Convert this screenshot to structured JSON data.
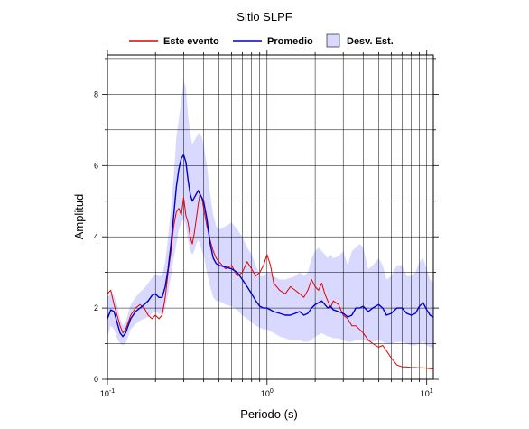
{
  "chart_data": {
    "type": "line",
    "title": "Sitio SLPF",
    "xlabel": "Periodo (s)",
    "ylabel": "Amplitud",
    "x_scale": "log",
    "xlim": [
      0.1,
      11
    ],
    "ylim": [
      0,
      9.1
    ],
    "grid": true,
    "legend_placement": "top-center",
    "x_ticks": [
      {
        "value": 0.1,
        "base": "10",
        "exp": "-1"
      },
      {
        "value": 1,
        "base": "10",
        "exp": "0"
      },
      {
        "value": 10,
        "base": "10",
        "exp": "1"
      }
    ],
    "y_ticks": [
      0,
      2,
      4,
      6,
      8
    ],
    "legend": {
      "event_label": "Este evento",
      "mean_label": "Promedio",
      "std_label": "Desv. Est."
    },
    "colors": {
      "event": "#e60000",
      "mean": "#0000cc",
      "band": "#d9d9ff",
      "grid": "#000000"
    },
    "series": [
      {
        "name": "Este evento",
        "x": [
          0.1,
          0.105,
          0.11,
          0.115,
          0.12,
          0.125,
          0.13,
          0.135,
          0.14,
          0.15,
          0.16,
          0.17,
          0.18,
          0.19,
          0.2,
          0.21,
          0.22,
          0.23,
          0.24,
          0.25,
          0.26,
          0.27,
          0.28,
          0.29,
          0.3,
          0.31,
          0.32,
          0.33,
          0.34,
          0.35,
          0.36,
          0.37,
          0.38,
          0.39,
          0.4,
          0.42,
          0.44,
          0.46,
          0.48,
          0.5,
          0.55,
          0.6,
          0.65,
          0.7,
          0.75,
          0.8,
          0.85,
          0.9,
          0.95,
          1.0,
          1.05,
          1.1,
          1.2,
          1.3,
          1.4,
          1.5,
          1.6,
          1.7,
          1.8,
          1.9,
          2.0,
          2.1,
          2.2,
          2.3,
          2.4,
          2.5,
          2.6,
          2.8,
          3.0,
          3.2,
          3.4,
          3.6,
          3.8,
          4.0,
          4.3,
          4.6,
          5.0,
          5.3,
          5.6,
          6.0,
          6.5,
          7.0,
          7.5,
          8.0,
          8.5,
          9.0,
          9.5,
          10.0,
          10.5,
          11.0
        ],
        "y": [
          2.4,
          2.5,
          2.1,
          1.8,
          1.5,
          1.3,
          1.4,
          1.6,
          1.8,
          2.0,
          2.1,
          2.0,
          1.8,
          1.7,
          1.8,
          1.7,
          1.8,
          2.3,
          3.0,
          3.6,
          4.3,
          4.7,
          4.8,
          4.6,
          5.1,
          4.6,
          4.4,
          4.0,
          3.8,
          4.1,
          4.5,
          4.9,
          5.2,
          5.1,
          4.8,
          4.3,
          3.9,
          3.6,
          3.4,
          3.3,
          3.1,
          3.2,
          2.9,
          3.0,
          3.3,
          3.1,
          2.9,
          3.0,
          3.2,
          3.5,
          3.2,
          2.7,
          2.5,
          2.4,
          2.6,
          2.5,
          2.4,
          2.3,
          2.5,
          2.8,
          2.6,
          2.5,
          2.7,
          2.4,
          2.2,
          2.0,
          2.2,
          2.1,
          1.8,
          1.7,
          1.5,
          1.5,
          1.4,
          1.3,
          1.1,
          1.0,
          0.9,
          0.95,
          0.8,
          0.6,
          0.4,
          0.35,
          0.35,
          0.33,
          0.33,
          0.32,
          0.32,
          0.31,
          0.3,
          0.3
        ]
      },
      {
        "name": "Promedio",
        "x": [
          0.1,
          0.105,
          0.11,
          0.115,
          0.12,
          0.125,
          0.13,
          0.135,
          0.14,
          0.15,
          0.16,
          0.17,
          0.18,
          0.19,
          0.2,
          0.21,
          0.22,
          0.23,
          0.24,
          0.25,
          0.26,
          0.27,
          0.28,
          0.29,
          0.3,
          0.31,
          0.32,
          0.33,
          0.34,
          0.35,
          0.36,
          0.37,
          0.38,
          0.39,
          0.4,
          0.42,
          0.44,
          0.46,
          0.48,
          0.5,
          0.55,
          0.6,
          0.65,
          0.7,
          0.75,
          0.8,
          0.85,
          0.9,
          0.95,
          1.0,
          1.05,
          1.1,
          1.2,
          1.3,
          1.4,
          1.5,
          1.6,
          1.7,
          1.8,
          1.9,
          2.0,
          2.1,
          2.2,
          2.3,
          2.4,
          2.5,
          2.6,
          2.8,
          3.0,
          3.2,
          3.4,
          3.6,
          3.8,
          4.0,
          4.3,
          4.6,
          5.0,
          5.3,
          5.6,
          6.0,
          6.5,
          7.0,
          7.5,
          8.0,
          8.5,
          9.0,
          9.5,
          10.0,
          10.5,
          11.0
        ],
        "y": [
          1.7,
          1.95,
          1.9,
          1.6,
          1.3,
          1.2,
          1.3,
          1.5,
          1.7,
          1.9,
          2.0,
          2.1,
          2.2,
          2.35,
          2.4,
          2.3,
          2.3,
          2.6,
          3.1,
          3.8,
          4.6,
          5.4,
          5.9,
          6.2,
          6.3,
          6.1,
          5.6,
          5.2,
          5.0,
          5.1,
          5.2,
          5.3,
          5.2,
          5.1,
          5.0,
          4.5,
          3.8,
          3.4,
          3.25,
          3.2,
          3.15,
          3.1,
          3.0,
          2.8,
          2.6,
          2.4,
          2.2,
          2.05,
          2.0,
          2.0,
          1.95,
          1.9,
          1.85,
          1.8,
          1.8,
          1.85,
          1.9,
          1.8,
          1.85,
          2.0,
          2.1,
          2.15,
          2.2,
          2.1,
          2.0,
          2.05,
          1.95,
          1.9,
          1.85,
          1.75,
          1.8,
          2.0,
          2.0,
          2.05,
          1.9,
          2.0,
          2.1,
          2.0,
          1.8,
          1.85,
          2.0,
          2.0,
          1.85,
          1.8,
          1.85,
          2.05,
          2.15,
          1.95,
          1.8,
          1.75
        ]
      }
    ],
    "band": {
      "name": "Desv. Est.",
      "x": [
        0.1,
        0.105,
        0.11,
        0.115,
        0.12,
        0.125,
        0.13,
        0.135,
        0.14,
        0.15,
        0.16,
        0.17,
        0.18,
        0.19,
        0.2,
        0.21,
        0.22,
        0.23,
        0.24,
        0.25,
        0.26,
        0.27,
        0.28,
        0.29,
        0.3,
        0.31,
        0.32,
        0.33,
        0.34,
        0.35,
        0.36,
        0.37,
        0.38,
        0.39,
        0.4,
        0.42,
        0.44,
        0.46,
        0.48,
        0.5,
        0.55,
        0.6,
        0.65,
        0.7,
        0.75,
        0.8,
        0.85,
        0.9,
        0.95,
        1.0,
        1.05,
        1.1,
        1.2,
        1.3,
        1.4,
        1.5,
        1.6,
        1.7,
        1.8,
        1.9,
        2.0,
        2.1,
        2.2,
        2.3,
        2.4,
        2.5,
        2.6,
        2.8,
        3.0,
        3.2,
        3.4,
        3.6,
        3.8,
        4.0,
        4.3,
        4.6,
        5.0,
        5.3,
        5.6,
        6.0,
        6.5,
        7.0,
        7.5,
        8.0,
        8.5,
        9.0,
        9.5,
        10.0,
        10.5,
        11.0
      ],
      "lower": [
        1.2,
        1.5,
        1.4,
        1.15,
        1.0,
        0.95,
        1.0,
        1.2,
        1.4,
        1.55,
        1.65,
        1.7,
        1.75,
        1.85,
        1.9,
        1.85,
        1.8,
        2.0,
        2.4,
        2.9,
        3.4,
        3.8,
        4.2,
        4.4,
        4.5,
        4.3,
        3.9,
        3.6,
        3.5,
        3.6,
        3.8,
        3.9,
        3.8,
        3.6,
        3.5,
        3.0,
        2.6,
        2.3,
        2.2,
        2.2,
        2.1,
        2.05,
        1.95,
        1.8,
        1.7,
        1.6,
        1.5,
        1.45,
        1.4,
        1.4,
        1.35,
        1.3,
        1.2,
        1.15,
        1.1,
        1.1,
        1.1,
        1.05,
        1.05,
        1.1,
        1.2,
        1.25,
        1.3,
        1.25,
        1.2,
        1.2,
        1.15,
        1.15,
        1.1,
        1.05,
        1.05,
        1.1,
        1.1,
        1.1,
        1.05,
        1.05,
        1.1,
        1.05,
        1.0,
        1.0,
        1.05,
        1.05,
        1.0,
        0.95,
        0.95,
        1.0,
        1.05,
        0.95,
        0.9,
        0.9
      ],
      "upper": [
        2.3,
        2.4,
        2.35,
        2.1,
        1.7,
        1.5,
        1.6,
        1.85,
        2.1,
        2.3,
        2.45,
        2.55,
        2.7,
        2.85,
        2.95,
        2.9,
        2.9,
        3.3,
        4.0,
        4.8,
        5.7,
        6.8,
        7.3,
        7.8,
        8.4,
        8.2,
        7.4,
        6.9,
        6.6,
        6.7,
        6.8,
        6.9,
        6.9,
        6.8,
        6.6,
        6.0,
        5.2,
        4.6,
        4.3,
        4.2,
        4.3,
        4.4,
        4.2,
        4.0,
        3.7,
        3.5,
        3.2,
        2.9,
        2.9,
        3.0,
        3.0,
        2.9,
        2.8,
        2.8,
        2.85,
        2.9,
        3.0,
        2.9,
        3.0,
        3.4,
        3.6,
        3.7,
        3.6,
        3.5,
        3.4,
        3.5,
        3.4,
        3.45,
        3.6,
        3.2,
        3.6,
        3.7,
        3.8,
        3.7,
        3.1,
        3.2,
        3.4,
        3.2,
        2.8,
        2.9,
        3.2,
        3.2,
        2.9,
        2.9,
        3.0,
        3.3,
        3.4,
        3.1,
        2.8,
        2.7
      ]
    }
  }
}
